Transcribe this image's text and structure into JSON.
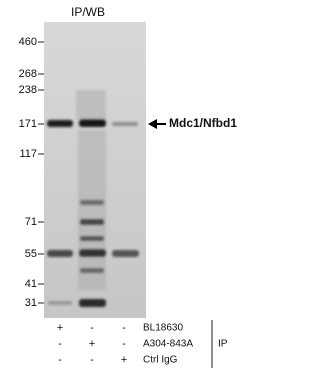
{
  "title": "IP/WB",
  "markers": [
    460,
    268,
    238,
    171,
    117,
    71,
    55,
    41,
    31
  ],
  "target_label": "Mdc1/Nfbd1",
  "table": {
    "rows": [
      {
        "signs": [
          "+",
          "-",
          "-"
        ],
        "label": "BL18630"
      },
      {
        "signs": [
          "-",
          "+",
          "-"
        ],
        "label": "A304-843A"
      },
      {
        "signs": [
          "-",
          "-",
          "+"
        ],
        "label": "Ctrl IgG"
      }
    ],
    "group_label": "IP"
  }
}
